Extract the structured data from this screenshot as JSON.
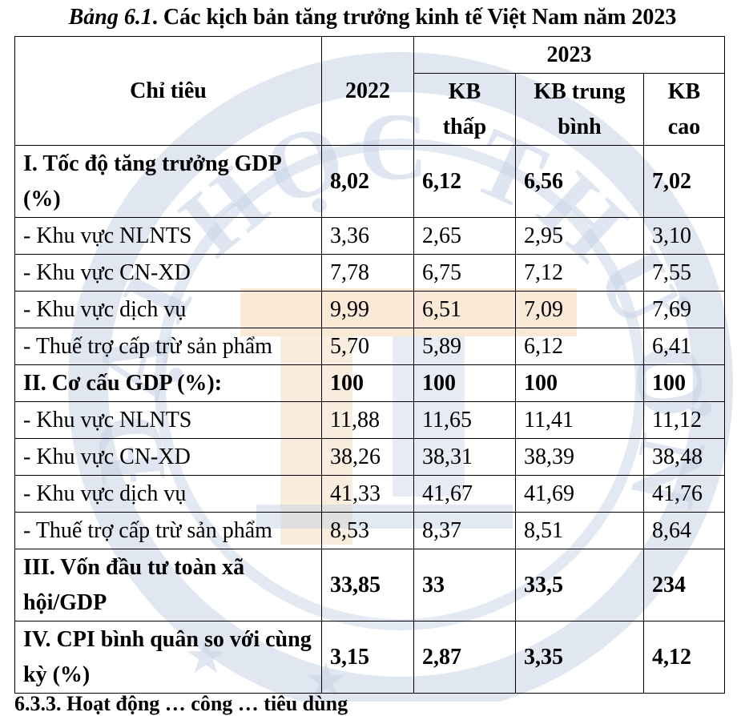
{
  "caption": {
    "number": "Bảng 6.1",
    "title": ". Các kịch bản tăng trưởng kinh tế Việt Nam năm 2023"
  },
  "table": {
    "header": {
      "indicator": "Chỉ tiêu",
      "year_2022": "2022",
      "year_2023": "2023",
      "kb_low_line1": "KB",
      "kb_low_line2": "thấp",
      "kb_mid_line1": "KB trung",
      "kb_mid_line2": "bình",
      "kb_high_line1": "KB",
      "kb_high_line2": "cao"
    },
    "rows": [
      {
        "label": "I. Tốc độ tăng trưởng GDP (%)",
        "v2022": "8,02",
        "low": "6,12",
        "mid": "6,56",
        "high": "7,02"
      },
      {
        "label": "- Khu vực NLNTS",
        "v2022": "3,36",
        "low": "2,65",
        "mid": "2,95",
        "high": "3,10"
      },
      {
        "label": "- Khu vực CN-XD",
        "v2022": "7,78",
        "low": "6,75",
        "mid": "7,12",
        "high": "7,55"
      },
      {
        "label": "- Khu vực dịch vụ",
        "v2022": "9,99",
        "low": "6,51",
        "mid": "7,09",
        "high": "7,69"
      },
      {
        "label": "- Thuế trợ cấp trừ sản phẩm",
        "v2022": "5,70",
        "low": "5,89",
        "mid": "6,12",
        "high": "6,41"
      },
      {
        "label": "II. Cơ cấu GDP (%):",
        "v2022": "100",
        "low": "100",
        "mid": "100",
        "high": "100"
      },
      {
        "label": "- Khu vực NLNTS",
        "v2022": "11,88",
        "low": "11,65",
        "mid": "11,41",
        "high": "11,12"
      },
      {
        "label": "- Khu vực CN-XD",
        "v2022": "38,26",
        "low": "38,31",
        "mid": "38,39",
        "high": "38,48"
      },
      {
        "label": "- Khu vực dịch vụ",
        "v2022": "41,33",
        "low": "41,67",
        "mid": "41,69",
        "high": "41,76"
      },
      {
        "label": "- Thuế trợ cấp trừ sản phẩm",
        "v2022": "8,53",
        "low": "8,37",
        "mid": "8,51",
        "high": "8,64"
      },
      {
        "label": "III. Vốn đầu tư toàn xã hội/GDP",
        "v2022": "33,85",
        "low": "33",
        "mid": "33,5",
        "high": "234"
      },
      {
        "label": "IV. CPI bình quân so với cùng kỳ (%)",
        "v2022": "3,15",
        "low": "2,87",
        "mid": "3,35",
        "high": "4,12"
      }
    ]
  },
  "footer": {
    "text": "6.3.3. Hoạt động … công … tiêu dùng"
  },
  "watermark": {
    "ring_text": "ĐẠI HỌC THƯƠNG MẠI",
    "color_blue": "#c7d3e6",
    "color_orange": "#f6d7b3"
  }
}
